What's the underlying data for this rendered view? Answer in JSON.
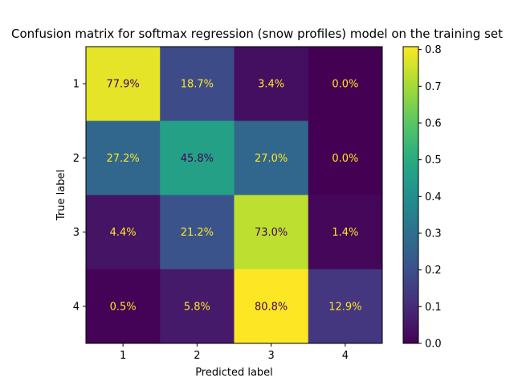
{
  "chart_data": {
    "type": "heatmap",
    "title": "Confusion matrix for softmax regression (snow profiles) model on the training set",
    "xlabel": "Predicted label",
    "ylabel": "True label",
    "x_categories": [
      "1",
      "2",
      "3",
      "4"
    ],
    "y_categories": [
      "1",
      "2",
      "3",
      "4"
    ],
    "values": [
      [
        0.779,
        0.187,
        0.034,
        0.0
      ],
      [
        0.272,
        0.458,
        0.27,
        0.0
      ],
      [
        0.044,
        0.212,
        0.73,
        0.014
      ],
      [
        0.005,
        0.058,
        0.808,
        0.129
      ]
    ],
    "cell_labels": [
      [
        "77.9%",
        "18.7%",
        "3.4%",
        "0.0%"
      ],
      [
        "27.2%",
        "45.8%",
        "27.0%",
        "0.0%"
      ],
      [
        "4.4%",
        "21.2%",
        "73.0%",
        "1.4%"
      ],
      [
        "0.5%",
        "5.8%",
        "80.8%",
        "12.9%"
      ]
    ],
    "colormap": "viridis",
    "colorbar": {
      "range": [
        0.0,
        0.808
      ],
      "ticks": [
        "0.0",
        "0.1",
        "0.2",
        "0.3",
        "0.4",
        "0.5",
        "0.6",
        "0.7",
        "0.8"
      ],
      "tick_values": [
        0.0,
        0.1,
        0.2,
        0.3,
        0.4,
        0.5,
        0.6,
        0.7,
        0.8
      ]
    },
    "text_colors": {
      "light": "#fde725",
      "dark": "#440154"
    },
    "grid": false,
    "legend": "colorbar-right"
  }
}
